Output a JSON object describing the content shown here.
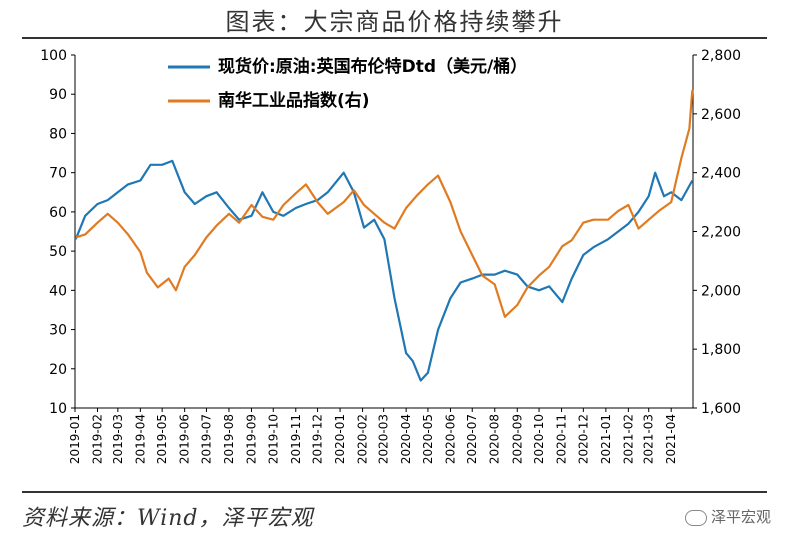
{
  "title": "图表：大宗商品价格持续攀升",
  "source": "资料来源：Wind，泽平宏观",
  "watermark": "泽平宏观",
  "colors": {
    "brent": "#1f77b4",
    "nanhua": "#e07b22",
    "axis": "#000000"
  },
  "chart_data": {
    "type": "line",
    "legend_placement": "top-center",
    "grid": false,
    "x_ticks": [
      "2019-01",
      "2019-02",
      "2019-03",
      "2019-04",
      "2019-05",
      "2019-06",
      "2019-07",
      "2019-08",
      "2019-09",
      "2019-10",
      "2019-11",
      "2019-12",
      "2020-01",
      "2020-02",
      "2020-03",
      "2020-04",
      "2020-05",
      "2020-06",
      "2020-07",
      "2020-08",
      "2020-09",
      "2020-10",
      "2020-11",
      "2020-12",
      "2021-01",
      "2021-02",
      "2021-03",
      "2021-04"
    ],
    "y_left": {
      "min": 10,
      "max": 100,
      "ticks": [
        "10",
        "20",
        "30",
        "40",
        "50",
        "60",
        "70",
        "80",
        "90",
        "100"
      ]
    },
    "y_right": {
      "min": 1600,
      "max": 2800,
      "ticks": [
        "1,600",
        "1,800",
        "2,000",
        "2,200",
        "2,400",
        "2,600",
        "2,800"
      ]
    },
    "series": [
      {
        "name": "现货价:原油:英国布伦特Dtd（美元/桶）",
        "axis": "left",
        "color": "#1f77b4",
        "x": [
          "2019-01-02",
          "2019-01-15",
          "2019-02-01",
          "2019-02-15",
          "2019-03-01",
          "2019-03-15",
          "2019-04-01",
          "2019-04-15",
          "2019-05-01",
          "2019-05-15",
          "2019-06-01",
          "2019-06-15",
          "2019-07-01",
          "2019-07-15",
          "2019-08-01",
          "2019-08-15",
          "2019-09-01",
          "2019-09-16",
          "2019-10-01",
          "2019-10-15",
          "2019-11-01",
          "2019-11-15",
          "2019-12-01",
          "2019-12-15",
          "2020-01-06",
          "2020-01-20",
          "2020-02-03",
          "2020-02-17",
          "2020-03-02",
          "2020-03-16",
          "2020-04-01",
          "2020-04-10",
          "2020-04-21",
          "2020-05-01",
          "2020-05-15",
          "2020-06-01",
          "2020-06-15",
          "2020-07-01",
          "2020-07-15",
          "2020-08-01",
          "2020-08-15",
          "2020-09-01",
          "2020-09-15",
          "2020-10-01",
          "2020-10-15",
          "2020-11-02",
          "2020-11-15",
          "2020-12-01",
          "2020-12-15",
          "2021-01-04",
          "2021-01-18",
          "2021-02-01",
          "2021-02-15",
          "2021-03-01",
          "2021-03-10",
          "2021-03-22",
          "2021-04-01",
          "2021-04-15",
          "2021-04-30"
        ],
        "values": [
          53,
          59,
          62,
          63,
          65,
          67,
          68,
          72,
          72,
          73,
          65,
          62,
          64,
          65,
          61,
          58,
          59,
          65,
          60,
          59,
          61,
          62,
          63,
          65,
          70,
          65,
          56,
          58,
          53,
          38,
          24,
          22,
          17,
          19,
          30,
          38,
          42,
          43,
          44,
          44,
          45,
          44,
          41,
          40,
          41,
          37,
          43,
          49,
          51,
          53,
          55,
          57,
          60,
          64,
          70,
          64,
          65,
          63,
          68
        ]
      },
      {
        "name": "南华工业品指数(右)",
        "axis": "right",
        "color": "#e07b22",
        "x": [
          "2019-01-02",
          "2019-01-15",
          "2019-02-01",
          "2019-02-15",
          "2019-03-01",
          "2019-03-15",
          "2019-04-01",
          "2019-04-10",
          "2019-04-25",
          "2019-05-10",
          "2019-05-20",
          "2019-06-01",
          "2019-06-15",
          "2019-07-01",
          "2019-07-15",
          "2019-08-01",
          "2019-08-15",
          "2019-09-01",
          "2019-09-16",
          "2019-10-01",
          "2019-10-15",
          "2019-11-01",
          "2019-11-15",
          "2019-12-01",
          "2019-12-15",
          "2020-01-06",
          "2020-01-20",
          "2020-02-03",
          "2020-02-17",
          "2020-03-02",
          "2020-03-16",
          "2020-04-01",
          "2020-04-15",
          "2020-05-01",
          "2020-05-15",
          "2020-06-01",
          "2020-06-15",
          "2020-07-01",
          "2020-07-15",
          "2020-08-01",
          "2020-08-15",
          "2020-09-01",
          "2020-09-15",
          "2020-10-01",
          "2020-10-15",
          "2020-11-02",
          "2020-11-15",
          "2020-12-01",
          "2020-12-15",
          "2021-01-04",
          "2021-01-18",
          "2021-02-01",
          "2021-02-15",
          "2021-03-01",
          "2021-03-15",
          "2021-04-01",
          "2021-04-15",
          "2021-04-26",
          "2021-04-30"
        ],
        "values": [
          2180,
          2190,
          2230,
          2260,
          2230,
          2190,
          2130,
          2060,
          2010,
          2040,
          2000,
          2080,
          2120,
          2180,
          2220,
          2260,
          2230,
          2290,
          2250,
          2240,
          2290,
          2330,
          2360,
          2300,
          2260,
          2300,
          2340,
          2290,
          2260,
          2230,
          2210,
          2280,
          2320,
          2360,
          2390,
          2300,
          2200,
          2120,
          2050,
          2020,
          1910,
          1950,
          2010,
          2050,
          2080,
          2150,
          2170,
          2230,
          2240,
          2240,
          2270,
          2290,
          2210,
          2240,
          2270,
          2300,
          2450,
          2550,
          2680
        ]
      }
    ]
  }
}
